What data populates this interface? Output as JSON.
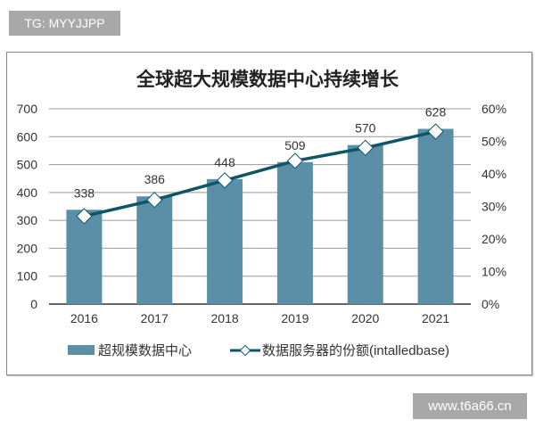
{
  "tag": "TG: MYYJJPP",
  "watermark": "www.t6a66.cn",
  "chart_data": {
    "type": "bar+line",
    "title": "全球超大规模数据中心持续增长",
    "categories": [
      "2016",
      "2017",
      "2018",
      "2019",
      "2020",
      "2021"
    ],
    "series": [
      {
        "name": "超规模数据中心",
        "type": "bar",
        "axis": "left",
        "values": [
          338,
          386,
          448,
          509,
          570,
          628
        ],
        "color": "#5b8fa8"
      },
      {
        "name": "数据服务器的份额(intalledbase)",
        "type": "line",
        "axis": "right",
        "values": [
          27,
          32,
          38,
          44,
          48,
          53
        ],
        "color": "#0e5566"
      }
    ],
    "y_left": {
      "ylim": [
        0,
        700
      ],
      "ticks": [
        "0",
        "100",
        "200",
        "300",
        "400",
        "500",
        "600",
        "700"
      ]
    },
    "y_right": {
      "ylim": [
        0,
        60
      ],
      "ticks": [
        "0%",
        "10%",
        "20%",
        "30%",
        "40%",
        "50%",
        "60%"
      ]
    },
    "grid": true,
    "legend": "bottom"
  }
}
